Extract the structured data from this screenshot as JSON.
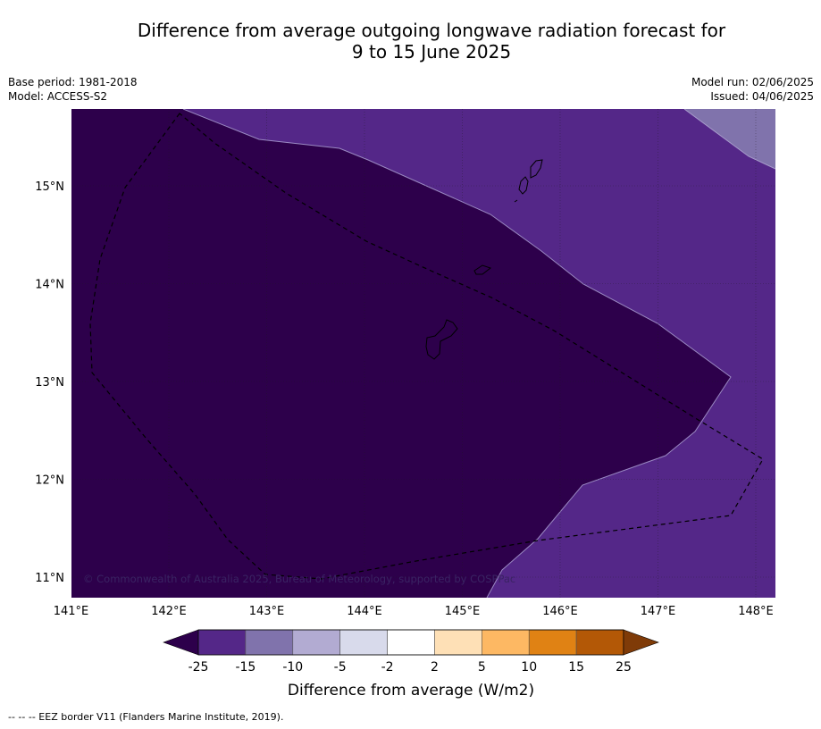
{
  "title": {
    "line1": "Difference from average outgoing longwave radiation forecast for",
    "line2": "9 to 15 June 2025"
  },
  "meta": {
    "base_period": "Base period: 1981-2018",
    "model": "Model: ACCESS-S2",
    "model_run": "Model run: 02/06/2025",
    "issued": "Issued: 04/06/2025"
  },
  "map": {
    "lon_labels": [
      "141°E",
      "142°E",
      "143°E",
      "144°E",
      "145°E",
      "146°E",
      "147°E",
      "148°E"
    ],
    "lat_labels": [
      "15°N",
      "14°N",
      "13°N",
      "12°N",
      "11°N"
    ],
    "lon_range": [
      141,
      148.2
    ],
    "lat_range": [
      10.8,
      15.8
    ],
    "copyright": "© Commonwealth of Australia 2025, Bureau of Meteorology, supported by COSPPac",
    "colors": {
      "below_-25": "#2d004b",
      "-25_-15": "#542788",
      "-15_-10": "#8073ac",
      "grid": "#555555",
      "coast": "#000000"
    }
  },
  "colorbar": {
    "title": "Difference from average (W/m2)",
    "tick_labels": [
      "-25",
      "-15",
      "-10",
      "-5",
      "-2",
      "2",
      "5",
      "10",
      "15",
      "25"
    ],
    "colors": {
      "under": "#2d004b",
      "bins": [
        "#542788",
        "#8073ac",
        "#b2abd2",
        "#d8daeb",
        "#ffffff",
        "#fee0b6",
        "#fdb863",
        "#e08214",
        "#b35806"
      ],
      "over": "#7f3b08"
    }
  },
  "footnote": "--  --  -- EEZ border V11 (Flanders Marine Institute, 2019)."
}
